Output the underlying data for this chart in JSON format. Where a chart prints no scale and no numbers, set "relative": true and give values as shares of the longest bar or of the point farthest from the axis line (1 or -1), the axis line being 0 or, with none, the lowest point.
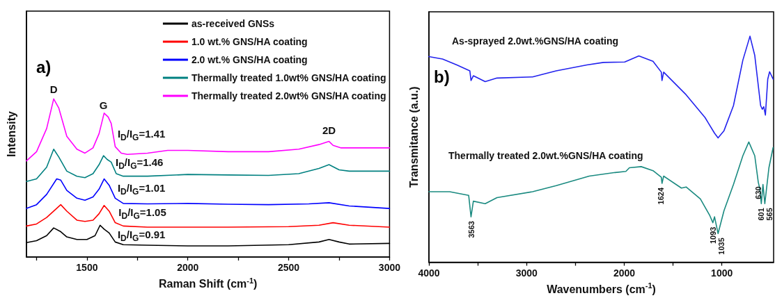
{
  "chart_data": [
    {
      "type": "line",
      "relative": true,
      "xlabel": "Raman Shift (cm$^{-1}$)",
      "ylabel": "Intensity",
      "xlim": [
        1200,
        3000
      ],
      "xticks": [
        {
          "value": 1250,
          "label": null
        },
        1500,
        {
          "value": 1750,
          "label": null
        },
        2000,
        {
          "value": 2250,
          "label": null
        },
        2500,
        {
          "value": 2750,
          "label": null
        },
        3000
      ],
      "tick_labels": "x",
      "legend": "top right",
      "series": [
        {
          "name": "as-received GNSs",
          "color": "#000000",
          "x": [
            1200,
            1250,
            1300,
            1335,
            1370,
            1400,
            1450,
            1500,
            1540,
            1565,
            1585,
            1610,
            1640,
            1680,
            1800,
            2000,
            2200,
            2500,
            2650,
            2700,
            2750,
            2800,
            3000
          ],
          "values": [
            0.091,
            0.103,
            0.135,
            0.184,
            0.16,
            0.127,
            0.111,
            0.111,
            0.135,
            0.201,
            0.176,
            0.152,
            0.095,
            0.078,
            0.075,
            0.07,
            0.07,
            0.078,
            0.095,
            0.111,
            0.095,
            0.082,
            0.086
          ]
        },
        {
          "name": "1.0 wt.% GNS/HA coating",
          "color": "#ff0000",
          "x": [
            1200,
            1250,
            1300,
            1370,
            1400,
            1450,
            1490,
            1530,
            1560,
            1585,
            1610,
            1640,
            1680,
            1800,
            2000,
            2200,
            2500,
            2650,
            2720,
            2800,
            3000
          ],
          "values": [
            0.196,
            0.209,
            0.25,
            0.331,
            0.29,
            0.233,
            0.225,
            0.233,
            0.274,
            0.326,
            0.29,
            0.217,
            0.196,
            0.189,
            0.189,
            0.189,
            0.192,
            0.201,
            0.217,
            0.201,
            0.189
          ]
        },
        {
          "name": "2.0 wt.% GNS/HA coating",
          "color": "#0000ff",
          "x": [
            1200,
            1250,
            1300,
            1350,
            1370,
            1400,
            1450,
            1490,
            1530,
            1560,
            1585,
            1610,
            1640,
            1680,
            1800,
            2000,
            2200,
            2400,
            2600,
            2700,
            2800,
            3000
          ],
          "values": [
            0.307,
            0.331,
            0.396,
            0.494,
            0.486,
            0.421,
            0.372,
            0.359,
            0.38,
            0.429,
            0.494,
            0.454,
            0.372,
            0.339,
            0.336,
            0.339,
            0.334,
            0.331,
            0.336,
            0.343,
            0.323,
            0.307
          ]
        },
        {
          "name": "Thermally treated 1.0wt% GNS/HA coating",
          "color": "#008080",
          "x": [
            1200,
            1250,
            1300,
            1335,
            1360,
            1400,
            1450,
            1490,
            1530,
            1560,
            1582,
            1600,
            1620,
            1645,
            1680,
            1800,
            2000,
            2200,
            2400,
            2550,
            2650,
            2700,
            2750,
            2800,
            3000
          ],
          "values": [
            0.478,
            0.494,
            0.568,
            0.682,
            0.633,
            0.543,
            0.511,
            0.502,
            0.527,
            0.584,
            0.641,
            0.617,
            0.6,
            0.527,
            0.511,
            0.511,
            0.522,
            0.519,
            0.516,
            0.527,
            0.56,
            0.584,
            0.551,
            0.543,
            0.543
          ]
        },
        {
          "name": "Thermally treated 2.0wt% GNS/HA coating",
          "color": "#ff00ff",
          "x": [
            1200,
            1250,
            1300,
            1335,
            1360,
            1400,
            1450,
            1490,
            1530,
            1560,
            1585,
            1605,
            1620,
            1640,
            1670,
            1700,
            1800,
            1900,
            2000,
            2200,
            2400,
            2550,
            2650,
            2700,
            2720,
            2760,
            3000
          ],
          "values": [
            0.608,
            0.666,
            0.812,
            1,
            0.943,
            0.763,
            0.682,
            0.657,
            0.69,
            0.78,
            0.91,
            0.886,
            0.845,
            0.698,
            0.657,
            0.649,
            0.657,
            0.674,
            0.674,
            0.666,
            0.666,
            0.682,
            0.711,
            0.731,
            0.706,
            0.69,
            0.69
          ]
        }
      ],
      "annotations": [
        "a)",
        "D",
        "G",
        "2D",
        "I$_{D}$/I$_{G}$=1.41",
        "I$_{D}$/I$_{G}$=1.46",
        "I$_{D}$/I$_{G}$=1.01",
        "I$_{D}$/I$_{G}$=1.05",
        "I$_{D}$/I$_{G}$=0.91"
      ]
    },
    {
      "type": "line",
      "relative": true,
      "xlabel": "Wavenumbers (cm$^{-1}$)",
      "ylabel": "Transmitance (a.u.)",
      "xlim": [
        4000,
        470
      ],
      "xticks": [
        4000,
        {
          "value": 3500,
          "label": null
        },
        3000,
        {
          "value": 2500,
          "label": null
        },
        2000,
        {
          "value": 1500,
          "label": null
        },
        1000
      ],
      "tick_labels": "x",
      "series": [
        {
          "name": "As-sprayed 2.0wt.%GNS/HA coating",
          "color": "#2222ee",
          "x": [
            4000,
            3860,
            3714,
            3581,
            3569,
            3545,
            3424,
            3303,
            2939,
            2697,
            2383,
            2213,
            1995,
            1850,
            1705,
            1620,
            1613,
            1596,
            1366,
            1172,
            1075,
            1039,
            978,
            881,
            785,
            712,
            663,
            603,
            586,
            571,
            554,
            530,
            511,
            475
          ],
          "values": [
            0.91,
            0.899,
            0.873,
            0.847,
            0.804,
            0.825,
            0.799,
            0.815,
            0.82,
            0.847,
            0.873,
            0.884,
            0.886,
            0.913,
            0.889,
            0.841,
            0.804,
            0.841,
            0.741,
            0.64,
            0.571,
            0.55,
            0.582,
            0.693,
            0.894,
            1,
            0.915,
            0.693,
            0.677,
            0.688,
            0.651,
            0.81,
            0.843,
            0.81
          ]
        },
        {
          "name": "Thermally treated 2.0wt.%GNS/HA coating",
          "color": "#1a8a80",
          "x": [
            4000,
            3787,
            3593,
            3569,
            3545,
            3424,
            3303,
            2939,
            2697,
            2358,
            2092,
            1983,
            1947,
            1826,
            1705,
            1620,
            1613,
            1596,
            1414,
            1366,
            1220,
            1123,
            1092,
            1075,
            1039,
            978,
            881,
            785,
            724,
            663,
            627,
            610,
            596,
            579,
            560,
            518,
            475
          ],
          "values": [
            0.312,
            0.312,
            0.296,
            0.201,
            0.27,
            0.259,
            0.286,
            0.312,
            0.339,
            0.381,
            0.397,
            0.402,
            0.418,
            0.423,
            0.405,
            0.376,
            0.349,
            0.381,
            0.328,
            0.333,
            0.28,
            0.206,
            0.175,
            0.201,
            0.127,
            0.228,
            0.344,
            0.471,
            0.532,
            0.471,
            0.354,
            0.323,
            0.259,
            0.344,
            0.259,
            0.418,
            0.508
          ]
        }
      ],
      "annotations": [
        "b)",
        {
          "text": "3563",
          "x": 3563,
          "y": 0.201
        },
        {
          "text": "1624",
          "x": 1624,
          "y": 0.349
        },
        {
          "text": "1093",
          "x": 1093,
          "y": 0.175
        },
        {
          "text": "1035",
          "x": 1035,
          "y": 0.127
        },
        {
          "text": "630",
          "x": 630,
          "y": 0.354
        },
        {
          "text": "601",
          "x": 601,
          "y": 0.259
        },
        {
          "text": "565",
          "x": 565,
          "y": 0.259
        }
      ]
    }
  ]
}
